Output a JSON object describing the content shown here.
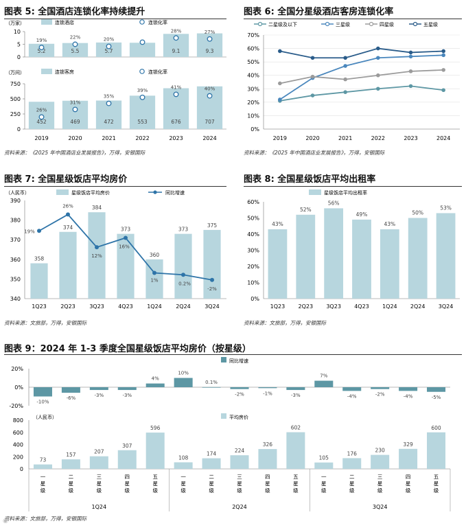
{
  "colors": {
    "bar": "#b7d6de",
    "line": "#2e74a8",
    "teal": "#5d97a4",
    "grey": "#9b9b9b",
    "navy": "#2a5c8a",
    "mid": "#4a87bd"
  },
  "fig5": {
    "title": "图表 5: 全国酒店连锁化率持续提升",
    "source": "资料来源：《2025 年中国酒店业发展报告》，万得，安银国际",
    "years": [
      "2019",
      "2020",
      "2021",
      "2022",
      "2023",
      "2024"
    ],
    "top": {
      "unit": "（万家）",
      "legend_bar": "连锁酒店",
      "legend_dot": "连锁化率",
      "values": [
        5.2,
        5.5,
        5.7,
        5.6,
        9.1,
        9.3
      ],
      "bar_labels": [
        "5.2",
        "5.5",
        "5.7",
        "",
        "9.1",
        "9.3"
      ],
      "rates": [
        19,
        22,
        20,
        24,
        28,
        27
      ],
      "rate_labels": [
        "19%",
        "22%",
        "20%",
        "",
        "28%",
        "27%"
      ],
      "yticks": [
        "0",
        "5",
        "10"
      ],
      "ylim": [
        0,
        10
      ]
    },
    "bottom": {
      "unit": "（万间）",
      "legend_bar": "连锁客房",
      "legend_dot": "连锁化率",
      "values": [
        452,
        469,
        472,
        553,
        676,
        707
      ],
      "bar_labels": [
        "452",
        "469",
        "472",
        "553",
        "676",
        "707"
      ],
      "rates": [
        26,
        31,
        35,
        39,
        41,
        40
      ],
      "rate_labels": [
        "26%",
        "31%",
        "35%",
        "39%",
        "41%",
        "40%"
      ],
      "yticks": [
        "0",
        "250",
        "500",
        "750"
      ],
      "ylim": [
        0,
        750
      ]
    }
  },
  "fig6": {
    "title": "图表 6: 全国分星级酒店客房连锁化率",
    "source": "资料来源：《2025 年中国酒店业发展报告》，万得，安银国际",
    "type": "line",
    "x": [
      "2019",
      "2020",
      "2021",
      "2022",
      "2023",
      "2024"
    ],
    "yticks": [
      "0%",
      "10%",
      "20%",
      "30%",
      "40%",
      "50%",
      "60%",
      "70%"
    ],
    "ylim": [
      0,
      70
    ],
    "series": [
      {
        "name": "二星级及以下",
        "values": [
          21,
          25,
          27.5,
          30,
          32,
          29
        ]
      },
      {
        "name": "三星级",
        "values": [
          22,
          38,
          47,
          53,
          54,
          55
        ]
      },
      {
        "name": "四星级",
        "values": [
          34,
          39,
          37,
          40,
          43,
          44
        ]
      },
      {
        "name": "五星级",
        "values": [
          58,
          53,
          53,
          60,
          57,
          58
        ]
      }
    ]
  },
  "fig7": {
    "title": "图表 7: 全国星级饭店平均房价",
    "source": "资料来源：文旅部，万得，安银国际",
    "unit": "（人民币）",
    "legend_bar": "星级饭店平均房价",
    "legend_line": "同比增速",
    "categories": [
      "1Q23",
      "2Q23",
      "3Q23",
      "4Q23",
      "1Q24",
      "2Q24",
      "3Q24"
    ],
    "values": [
      358,
      374,
      384,
      373,
      360,
      373,
      375
    ],
    "value_labels": [
      "358",
      "374",
      "384",
      "373",
      "360",
      "373",
      "375"
    ],
    "yoy": [
      19,
      26,
      12,
      16,
      1,
      0.2,
      -2
    ],
    "yoy_labels": [
      "19%",
      "26%",
      "12%",
      "16%",
      "1%",
      "0.2%",
      "-2%"
    ],
    "yticks": [
      "340",
      "350",
      "360",
      "370",
      "380",
      "390"
    ],
    "ylim": [
      340,
      390
    ]
  },
  "fig8": {
    "title": "图表 8: 全国星级饭店平均出租率",
    "source": "资料来源：文旅部，万得，安银国际",
    "legend_bar": "星级饭店平均出租率",
    "categories": [
      "1Q23",
      "2Q23",
      "3Q23",
      "4Q23",
      "1Q24",
      "2Q24",
      "3Q24"
    ],
    "values": [
      43,
      52,
      56,
      49,
      43,
      50,
      53
    ],
    "value_labels": [
      "43%",
      "52%",
      "56%",
      "49%",
      "43%",
      "50%",
      "53%"
    ],
    "yticks": [
      "0%",
      "10%",
      "20%",
      "30%",
      "40%",
      "50%",
      "60%"
    ],
    "ylim": [
      0,
      60
    ]
  },
  "fig9": {
    "title": "图表 9：2024 年 1-3 季度全国星级饭店平均房价（按星级）",
    "source": "资料来源：文旅部，万得，安银国际",
    "legend_top": "同比增速",
    "legend_bottom": "平均房价",
    "unit": "（人民币）",
    "groups": [
      "1Q24",
      "2Q24",
      "3Q24"
    ],
    "stars": [
      "一星级",
      "二星级",
      "三星级",
      "四星级",
      "五星级"
    ],
    "yoy": [
      -10,
      -6,
      -3,
      -3,
      4,
      10,
      0.1,
      -2,
      -1,
      -3,
      7,
      -4,
      -2,
      -4,
      -5
    ],
    "yoy_labels": [
      "-10%",
      "-6%",
      "-3%",
      "-3%",
      "4%",
      "10%",
      "0.1%",
      "-2%",
      "-1%",
      "-3%",
      "7%",
      "-4%",
      "-2%",
      "-4%",
      "-5%"
    ],
    "prices": [
      73,
      157,
      207,
      307,
      596,
      108,
      174,
      224,
      326,
      602,
      105,
      176,
      230,
      329,
      600
    ],
    "price_labels": [
      "73",
      "157",
      "207",
      "307",
      "596",
      "108",
      "174",
      "224",
      "326",
      "602",
      "105",
      "176",
      "230",
      "329",
      "600"
    ],
    "yticks_top": [
      "-20%",
      "0%",
      "20%"
    ],
    "ylim_top": [
      -20,
      20
    ],
    "yticks_bottom": [
      "0",
      "200",
      "400",
      "600",
      "800"
    ],
    "ylim_bottom": [
      0,
      800
    ]
  },
  "chart_data": [
    {
      "type": "bar",
      "title": "全国酒店连锁化率持续提升 — 连锁酒店（万家）",
      "categories": [
        "2019",
        "2020",
        "2021",
        "2022",
        "2023",
        "2024"
      ],
      "series": [
        {
          "name": "连锁酒店",
          "values": [
            5.2,
            5.5,
            5.7,
            5.6,
            9.1,
            9.3
          ]
        },
        {
          "name": "连锁化率(%)",
          "values": [
            19,
            22,
            20,
            24,
            28,
            27
          ]
        }
      ],
      "ylim": [
        0,
        10
      ]
    },
    {
      "type": "bar",
      "title": "全国酒店连锁化率持续提升 — 连锁客房（万间）",
      "categories": [
        "2019",
        "2020",
        "2021",
        "2022",
        "2023",
        "2024"
      ],
      "series": [
        {
          "name": "连锁客房",
          "values": [
            452,
            469,
            472,
            553,
            676,
            707
          ]
        },
        {
          "name": "连锁化率(%)",
          "values": [
            26,
            31,
            35,
            39,
            41,
            40
          ]
        }
      ],
      "ylim": [
        0,
        750
      ]
    },
    {
      "type": "line",
      "title": "全国分星级酒店客房连锁化率",
      "x": [
        "2019",
        "2020",
        "2021",
        "2022",
        "2023",
        "2024"
      ],
      "series": [
        {
          "name": "二星级及以下",
          "values": [
            21,
            25,
            27.5,
            30,
            32,
            29
          ]
        },
        {
          "name": "三星级",
          "values": [
            22,
            38,
            47,
            53,
            54,
            55
          ]
        },
        {
          "name": "四星级",
          "values": [
            34,
            39,
            37,
            40,
            43,
            44
          ]
        },
        {
          "name": "五星级",
          "values": [
            58,
            53,
            53,
            60,
            57,
            58
          ]
        }
      ],
      "ylim": [
        0,
        70
      ]
    },
    {
      "type": "bar",
      "title": "全国星级饭店平均房价",
      "categories": [
        "1Q23",
        "2Q23",
        "3Q23",
        "4Q23",
        "1Q24",
        "2Q24",
        "3Q24"
      ],
      "series": [
        {
          "name": "星级饭店平均房价",
          "values": [
            358,
            374,
            384,
            373,
            360,
            373,
            375
          ]
        },
        {
          "name": "同比增速(%)",
          "values": [
            19,
            26,
            12,
            16,
            1,
            0.2,
            -2
          ]
        }
      ],
      "ylim": [
        340,
        390
      ]
    },
    {
      "type": "bar",
      "title": "全国星级饭店平均出租率",
      "categories": [
        "1Q23",
        "2Q23",
        "3Q23",
        "4Q23",
        "1Q24",
        "2Q24",
        "3Q24"
      ],
      "values": [
        43,
        52,
        56,
        49,
        43,
        50,
        53
      ],
      "ylim": [
        0,
        60
      ]
    },
    {
      "type": "bar",
      "title": "2024 年 1-3 季度全国星级饭店平均房价（按星级）",
      "categories": [
        "1Q24 一星级",
        "1Q24 二星级",
        "1Q24 三星级",
        "1Q24 四星级",
        "1Q24 五星级",
        "2Q24 一星级",
        "2Q24 二星级",
        "2Q24 三星级",
        "2Q24 四星级",
        "2Q24 五星级",
        "3Q24 一星级",
        "3Q24 二星级",
        "3Q24 三星级",
        "3Q24 四星级",
        "3Q24 五星级"
      ],
      "series": [
        {
          "name": "平均房价",
          "values": [
            73,
            157,
            207,
            307,
            596,
            108,
            174,
            224,
            326,
            602,
            105,
            176,
            230,
            329,
            600
          ]
        },
        {
          "name": "同比增速(%)",
          "values": [
            -10,
            -6,
            -3,
            -3,
            4,
            10,
            0.1,
            -2,
            -1,
            -3,
            7,
            -4,
            -2,
            -4,
            -5
          ]
        }
      ]
    }
  ]
}
